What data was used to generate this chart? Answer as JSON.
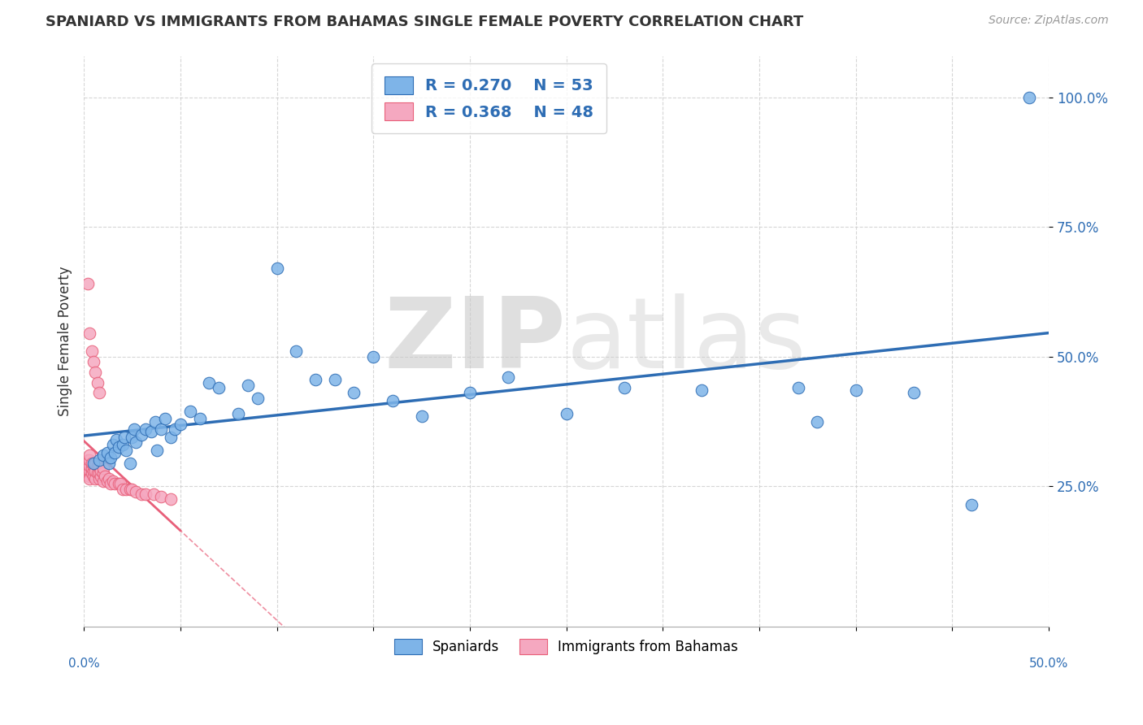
{
  "title": "SPANIARD VS IMMIGRANTS FROM BAHAMAS SINGLE FEMALE POVERTY CORRELATION CHART",
  "source": "Source: ZipAtlas.com",
  "ylabel": "Single Female Poverty",
  "watermark": "ZIPatlas",
  "legend_blue_label": "Spaniards",
  "legend_pink_label": "Immigrants from Bahamas",
  "R_blue": 0.27,
  "N_blue": 53,
  "R_pink": 0.368,
  "N_pink": 48,
  "xlim": [
    0.0,
    0.5
  ],
  "ylim": [
    -0.02,
    1.08
  ],
  "yticks": [
    0.25,
    0.5,
    0.75,
    1.0
  ],
  "ytick_labels": [
    "25.0%",
    "50.0%",
    "75.0%",
    "100.0%"
  ],
  "blue_scatter_color": "#7EB4E8",
  "blue_line_color": "#2E6DB4",
  "pink_scatter_color": "#F5A8C0",
  "pink_line_color": "#E8607A",
  "blue_x": [
    0.005,
    0.008,
    0.01,
    0.012,
    0.013,
    0.014,
    0.015,
    0.016,
    0.017,
    0.018,
    0.02,
    0.021,
    0.022,
    0.024,
    0.025,
    0.026,
    0.027,
    0.03,
    0.032,
    0.035,
    0.037,
    0.038,
    0.04,
    0.042,
    0.045,
    0.047,
    0.05,
    0.055,
    0.06,
    0.065,
    0.07,
    0.08,
    0.085,
    0.09,
    0.1,
    0.11,
    0.12,
    0.13,
    0.14,
    0.15,
    0.16,
    0.175,
    0.2,
    0.22,
    0.25,
    0.28,
    0.32,
    0.37,
    0.38,
    0.4,
    0.43,
    0.46,
    0.49
  ],
  "blue_y": [
    0.295,
    0.3,
    0.31,
    0.315,
    0.295,
    0.305,
    0.33,
    0.315,
    0.34,
    0.325,
    0.33,
    0.345,
    0.32,
    0.295,
    0.345,
    0.36,
    0.335,
    0.35,
    0.36,
    0.355,
    0.375,
    0.32,
    0.36,
    0.38,
    0.345,
    0.36,
    0.37,
    0.395,
    0.38,
    0.45,
    0.44,
    0.39,
    0.445,
    0.42,
    0.67,
    0.51,
    0.455,
    0.455,
    0.43,
    0.5,
    0.415,
    0.385,
    0.43,
    0.46,
    0.39,
    0.44,
    0.435,
    0.44,
    0.375,
    0.435,
    0.43,
    0.215,
    1.0
  ],
  "pink_x": [
    0.001,
    0.001,
    0.002,
    0.002,
    0.002,
    0.003,
    0.003,
    0.003,
    0.003,
    0.003,
    0.003,
    0.004,
    0.004,
    0.004,
    0.005,
    0.005,
    0.005,
    0.006,
    0.006,
    0.006,
    0.007,
    0.007,
    0.008,
    0.008,
    0.008,
    0.009,
    0.009,
    0.01,
    0.01,
    0.01,
    0.011,
    0.012,
    0.013,
    0.014,
    0.015,
    0.016,
    0.018,
    0.019,
    0.02,
    0.022,
    0.024,
    0.025,
    0.027,
    0.03,
    0.032,
    0.036,
    0.04,
    0.045
  ],
  "pink_y": [
    0.285,
    0.295,
    0.28,
    0.29,
    0.3,
    0.27,
    0.28,
    0.29,
    0.3,
    0.31,
    0.265,
    0.275,
    0.285,
    0.295,
    0.27,
    0.28,
    0.29,
    0.265,
    0.28,
    0.295,
    0.275,
    0.29,
    0.265,
    0.275,
    0.29,
    0.27,
    0.28,
    0.26,
    0.275,
    0.285,
    0.27,
    0.26,
    0.265,
    0.255,
    0.26,
    0.255,
    0.255,
    0.255,
    0.245,
    0.245,
    0.245,
    0.245,
    0.24,
    0.235,
    0.235,
    0.235,
    0.23,
    0.225
  ],
  "pink_outliers_x": [
    0.002,
    0.003,
    0.004,
    0.005,
    0.006,
    0.007,
    0.008
  ],
  "pink_outliers_y": [
    0.64,
    0.545,
    0.51,
    0.49,
    0.47,
    0.45,
    0.43
  ]
}
